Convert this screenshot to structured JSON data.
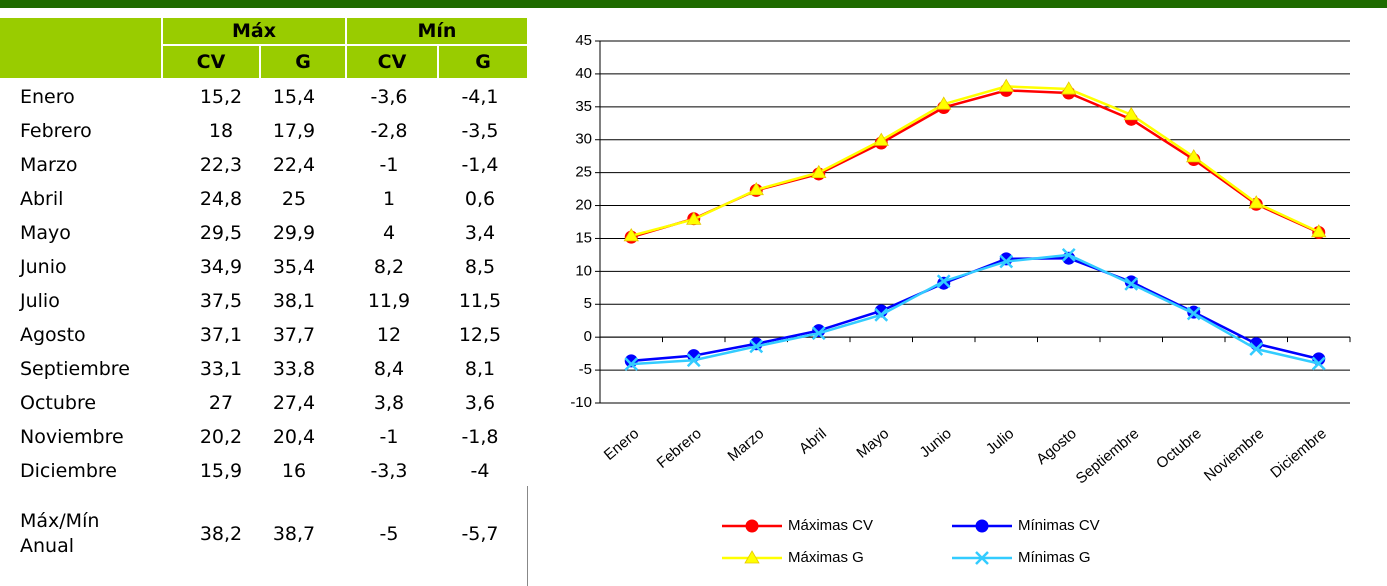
{
  "table": {
    "header": [
      "Máx",
      "Mín"
    ],
    "subheader": [
      "CV",
      "G",
      "CV",
      "G"
    ],
    "rows": [
      [
        "Enero",
        "15,2",
        "15,4",
        "-3,6",
        "-4,1"
      ],
      [
        "Febrero",
        "18",
        "17,9",
        "-2,8",
        "-3,5"
      ],
      [
        "Marzo",
        "22,3",
        "22,4",
        "-1",
        "-1,4"
      ],
      [
        "Abril",
        "24,8",
        "25",
        "1",
        "0,6"
      ],
      [
        "Mayo",
        "29,5",
        "29,9",
        "4",
        "3,4"
      ],
      [
        "Junio",
        "34,9",
        "35,4",
        "8,2",
        "8,5"
      ],
      [
        "Julio",
        "37,5",
        "38,1",
        "11,9",
        "11,5"
      ],
      [
        "Agosto",
        "37,1",
        "37,7",
        "12",
        "12,5"
      ],
      [
        "Septiembre",
        "33,1",
        "33,8",
        "8,4",
        "8,1"
      ],
      [
        "Octubre",
        "27",
        "27,4",
        "3,8",
        "3,6"
      ],
      [
        "Noviembre",
        "20,2",
        "20,4",
        "-1",
        "-1,8"
      ],
      [
        "Diciembre",
        "15,9",
        "16",
        "-3,3",
        "-4"
      ]
    ],
    "footer": [
      "Máx/Mín Anual",
      "38,2",
      "38,7",
      "-5",
      "-5,7"
    ]
  },
  "chart_data": {
    "type": "line",
    "categories": [
      "Enero",
      "Febrero",
      "Marzo",
      "Abril",
      "Mayo",
      "Junio",
      "Julio",
      "Agosto",
      "Septiembre",
      "Octubre",
      "Noviembre",
      "Diciembre"
    ],
    "series": [
      {
        "name": "Máximas CV",
        "color": "#ff0000",
        "marker": "circle",
        "values": [
          15.2,
          18,
          22.3,
          24.8,
          29.5,
          34.9,
          37.5,
          37.1,
          33.1,
          27,
          20.2,
          15.9
        ]
      },
      {
        "name": "Máximas G",
        "color": "#ffff00",
        "marker": "triangle",
        "values": [
          15.4,
          17.9,
          22.4,
          25,
          29.9,
          35.4,
          38.1,
          37.7,
          33.8,
          27.4,
          20.4,
          16
        ]
      },
      {
        "name": "Mínimas CV",
        "color": "#0000ff",
        "marker": "circle",
        "values": [
          -3.6,
          -2.8,
          -1,
          1,
          4,
          8.2,
          11.9,
          12,
          8.4,
          3.8,
          -1,
          -3.3
        ]
      },
      {
        "name": "Mínimas G",
        "color": "#33ccff",
        "marker": "x",
        "values": [
          -4.1,
          -3.5,
          -1.4,
          0.6,
          3.4,
          8.5,
          11.5,
          12.5,
          8.1,
          3.6,
          -1.8,
          -4
        ]
      }
    ],
    "ylim": [
      -10,
      45
    ],
    "yticks": [
      -10,
      -5,
      0,
      5,
      10,
      15,
      20,
      25,
      30,
      35,
      40,
      45
    ],
    "grid": true,
    "legend": "bottom"
  }
}
